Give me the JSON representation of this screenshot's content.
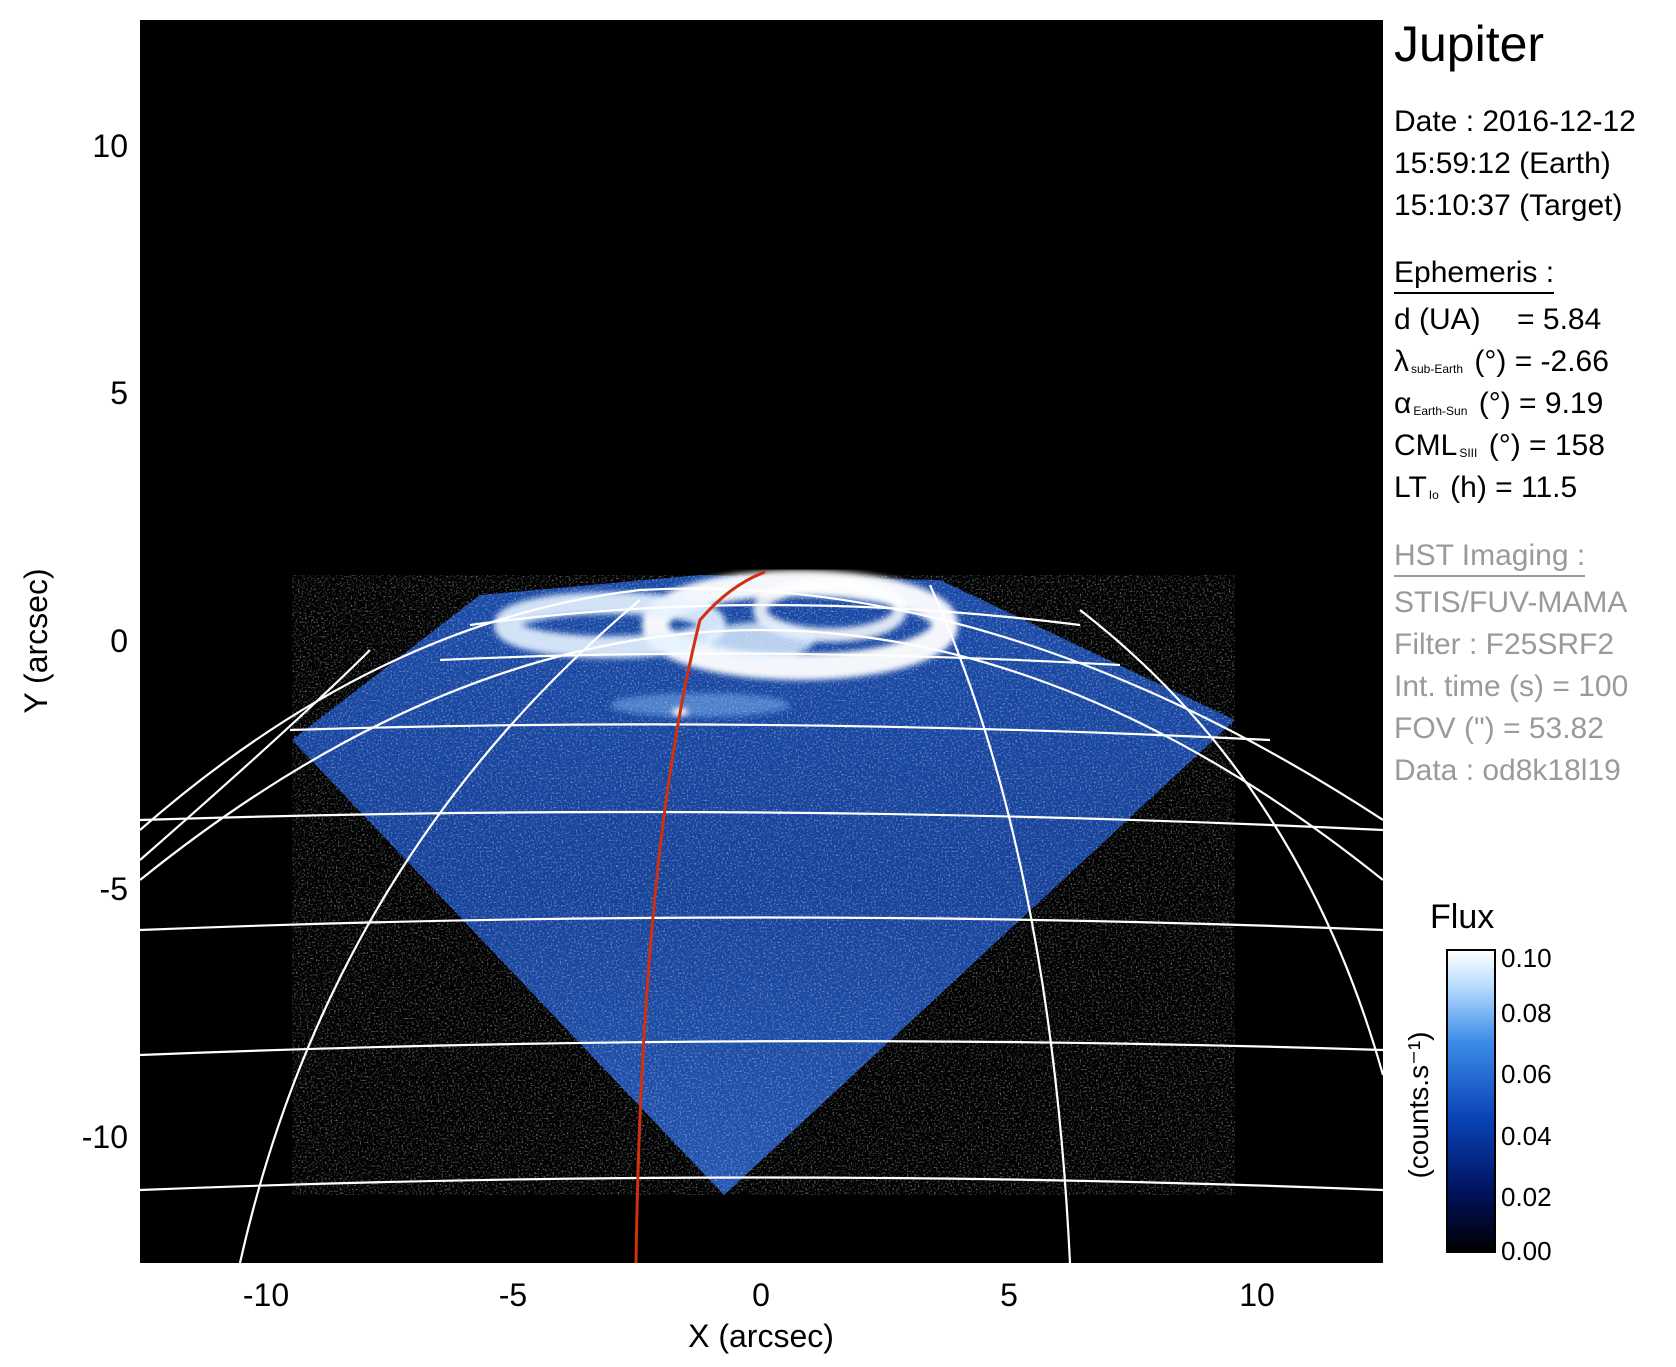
{
  "panel": {
    "target": "Jupiter",
    "date_line": "Date : 2016-12-12",
    "time_earth": "15:59:12 (Earth)",
    "time_target": "15:10:37 (Target)",
    "ephemeris": {
      "heading": "Ephemeris :",
      "d_label": "d (UA)",
      "d_value": "= 5.84",
      "lambda_symbol": "λ",
      "lambda_sub": "sub-Earth",
      "lambda_value": "(°) = -2.66",
      "alpha_symbol": "α",
      "alpha_sub": "Earth-Sun",
      "alpha_value": "(°) = 9.19",
      "cml_symbol": "CML",
      "cml_sub": "SIII",
      "cml_value": "(°) = 158",
      "lt_symbol": "LT",
      "lt_sub": "Io",
      "lt_value": "(h) = 11.5"
    },
    "hst": {
      "heading": "HST Imaging :",
      "instrument": "STIS/FUV-MAMA",
      "filter": "Filter : F25SRF2",
      "int_time": "Int. time (s) = 100",
      "fov": "FOV (\") = 53.82",
      "data": "Data : od8k18l19"
    }
  },
  "colorbar": {
    "title": "Flux",
    "unit_label": "(counts.s⁻¹)",
    "ticks": [
      "0.10",
      "0.08",
      "0.06",
      "0.04",
      "0.02",
      "0.00"
    ],
    "min": 0.0,
    "max": 0.1,
    "colors": [
      "#000000",
      "#00125e",
      "#0a45b8",
      "#3d8ee8",
      "#b9dcff",
      "#ffffff"
    ]
  },
  "image": {
    "xlabel": "X (arcsec)",
    "ylabel": "Y (arcsec)",
    "xlim": [
      -12.5,
      12.5
    ],
    "ylim": [
      -12.5,
      12.5
    ],
    "xticks": [
      "-10",
      "-5",
      "0",
      "5",
      "10"
    ],
    "yticks": [
      "10",
      "5",
      "0",
      "-5",
      "-10"
    ],
    "background": "#000000",
    "grid_color": "#ffffff",
    "meridian_color": "#d03010"
  }
}
